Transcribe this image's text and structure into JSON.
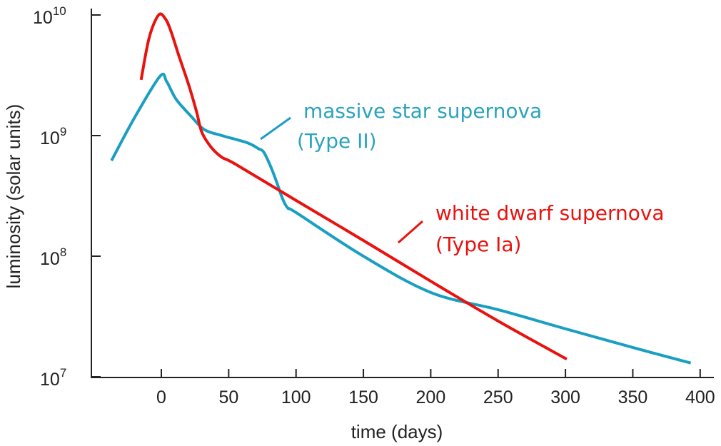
{
  "chart_data": {
    "type": "line",
    "xlabel": "time (days)",
    "ylabel": "luminosity (solar units)",
    "xlim": [
      -52,
      410
    ],
    "ylim": [
      10000000.0,
      10000000000.0
    ],
    "yscale": "log",
    "xticks": [
      0,
      50,
      100,
      150,
      200,
      250,
      300,
      350,
      400
    ],
    "yticks": [
      {
        "value": 10000000.0,
        "base": "10",
        "exp": "7"
      },
      {
        "value": 100000000.0,
        "base": "10",
        "exp": "8"
      },
      {
        "value": 1000000000.0,
        "base": "10",
        "exp": "9"
      },
      {
        "value": 10000000000.0,
        "base": "10",
        "exp": "10"
      }
    ],
    "grid": false,
    "series": [
      {
        "name": "massive star supernova (Type II)",
        "label_lines": [
          "massive star supernova",
          "(Type II)"
        ],
        "color": "#1a9fc2",
        "label_color": "#2aa3bd",
        "points": [
          [
            -37,
            620000000.0
          ],
          [
            -20,
            1400000000.0
          ],
          [
            -1,
            3100000000.0
          ],
          [
            4,
            2800000000.0
          ],
          [
            11,
            2000000000.0
          ],
          [
            22,
            1450000000.0
          ],
          [
            32,
            1120000000.0
          ],
          [
            45,
            1000000000.0
          ],
          [
            64,
            870000000.0
          ],
          [
            72,
            780000000.0
          ],
          [
            76,
            730000000.0
          ],
          [
            81,
            560000000.0
          ],
          [
            85,
            430000000.0
          ],
          [
            90,
            300000000.0
          ],
          [
            94,
            250000000.0
          ],
          [
            100,
            230000000.0
          ],
          [
            150,
            100000000.0
          ],
          [
            200,
            50000000.0
          ],
          [
            250,
            36000000.0
          ],
          [
            300,
            25000000.0
          ],
          [
            350,
            17500000.0
          ],
          [
            393,
            13000000.0
          ]
        ]
      },
      {
        "name": "white dwarf supernova (Type Ia)",
        "label_lines": [
          "white dwarf supernova",
          "(Type Ia)"
        ],
        "color": "#e8120e",
        "label_color": "#e8120e",
        "points": [
          [
            -15,
            2900000000.0
          ],
          [
            -9,
            6500000000.0
          ],
          [
            -2,
            10000000000.0
          ],
          [
            3,
            9300000000.0
          ],
          [
            7,
            7400000000.0
          ],
          [
            13,
            4600000000.0
          ],
          [
            20,
            2700000000.0
          ],
          [
            26,
            1600000000.0
          ],
          [
            30,
            1070000000.0
          ],
          [
            37,
            800000000.0
          ],
          [
            45,
            660000000.0
          ],
          [
            55,
            580000000.0
          ],
          [
            100,
            290000000.0
          ],
          [
            150,
            135000000.0
          ],
          [
            200,
            62000000.0
          ],
          [
            250,
            29000000.0
          ],
          [
            301,
            14000000.0
          ]
        ]
      }
    ]
  }
}
